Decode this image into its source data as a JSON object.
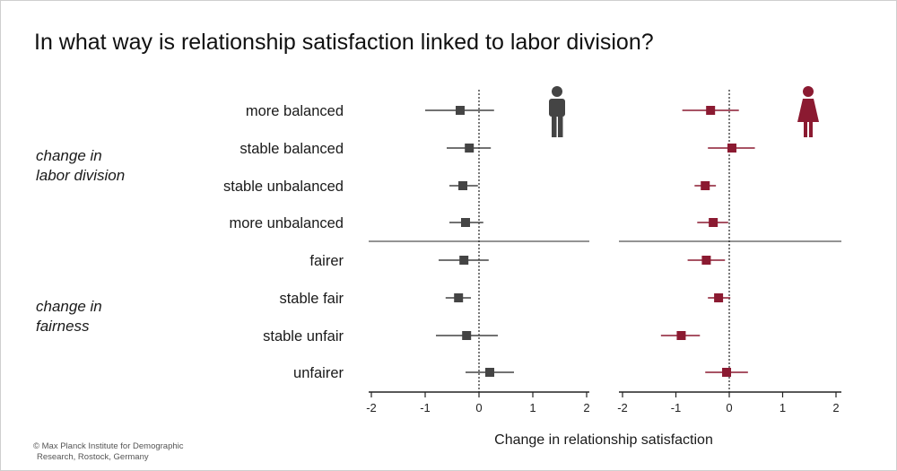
{
  "title": "In what way is relationship satisfaction linked to labor division?",
  "group_labels": {
    "labor_line1": "change in",
    "labor_line2": "labor division",
    "fairness_line1": "change in",
    "fairness_line2": "fairness"
  },
  "credit": {
    "line1": "© Max Planck Institute for Demographic",
    "line2": "Research, Rostock, Germany"
  },
  "colors": {
    "men": "#444444",
    "women": "#8b1a31"
  },
  "icons": {
    "men": "man-icon",
    "women": "woman-icon"
  },
  "chart_data": [
    {
      "type": "scatter",
      "subtype": "forest-plot",
      "panel": "men",
      "categories": [
        "more balanced",
        "stable balanced",
        "stable unbalanced",
        "more unbalanced",
        "fairer",
        "stable fair",
        "stable unfair",
        "unfairer"
      ],
      "estimates": [
        -0.35,
        -0.18,
        -0.3,
        -0.25,
        -0.28,
        -0.38,
        -0.23,
        0.2
      ],
      "ci_low": [
        -1.0,
        -0.6,
        -0.55,
        -0.55,
        -0.75,
        -0.62,
        -0.8,
        -0.25
      ],
      "ci_high": [
        0.28,
        0.22,
        -0.02,
        0.08,
        0.18,
        -0.15,
        0.35,
        0.65
      ],
      "xlabel": "Change in relationship satisfaction",
      "xticks": [
        -2,
        -1,
        0,
        1,
        2
      ],
      "xlim": [
        -2.05,
        2.1
      ],
      "reference_line": 0
    },
    {
      "type": "scatter",
      "subtype": "forest-plot",
      "panel": "women",
      "categories": [
        "more balanced",
        "stable balanced",
        "stable unbalanced",
        "more unbalanced",
        "fairer",
        "stable fair",
        "stable unfair",
        "unfairer"
      ],
      "estimates": [
        -0.35,
        0.05,
        -0.45,
        -0.3,
        -0.43,
        -0.2,
        -0.9,
        -0.05
      ],
      "ci_low": [
        -0.88,
        -0.4,
        -0.65,
        -0.6,
        -0.78,
        -0.4,
        -1.28,
        -0.45
      ],
      "ci_high": [
        0.18,
        0.48,
        -0.25,
        -0.02,
        -0.08,
        0.02,
        -0.55,
        0.35
      ],
      "xlabel": "Change in relationship satisfaction",
      "xticks": [
        -2,
        -1,
        0,
        1,
        2
      ],
      "xlim": [
        -2.05,
        2.1
      ],
      "reference_line": 0
    }
  ]
}
